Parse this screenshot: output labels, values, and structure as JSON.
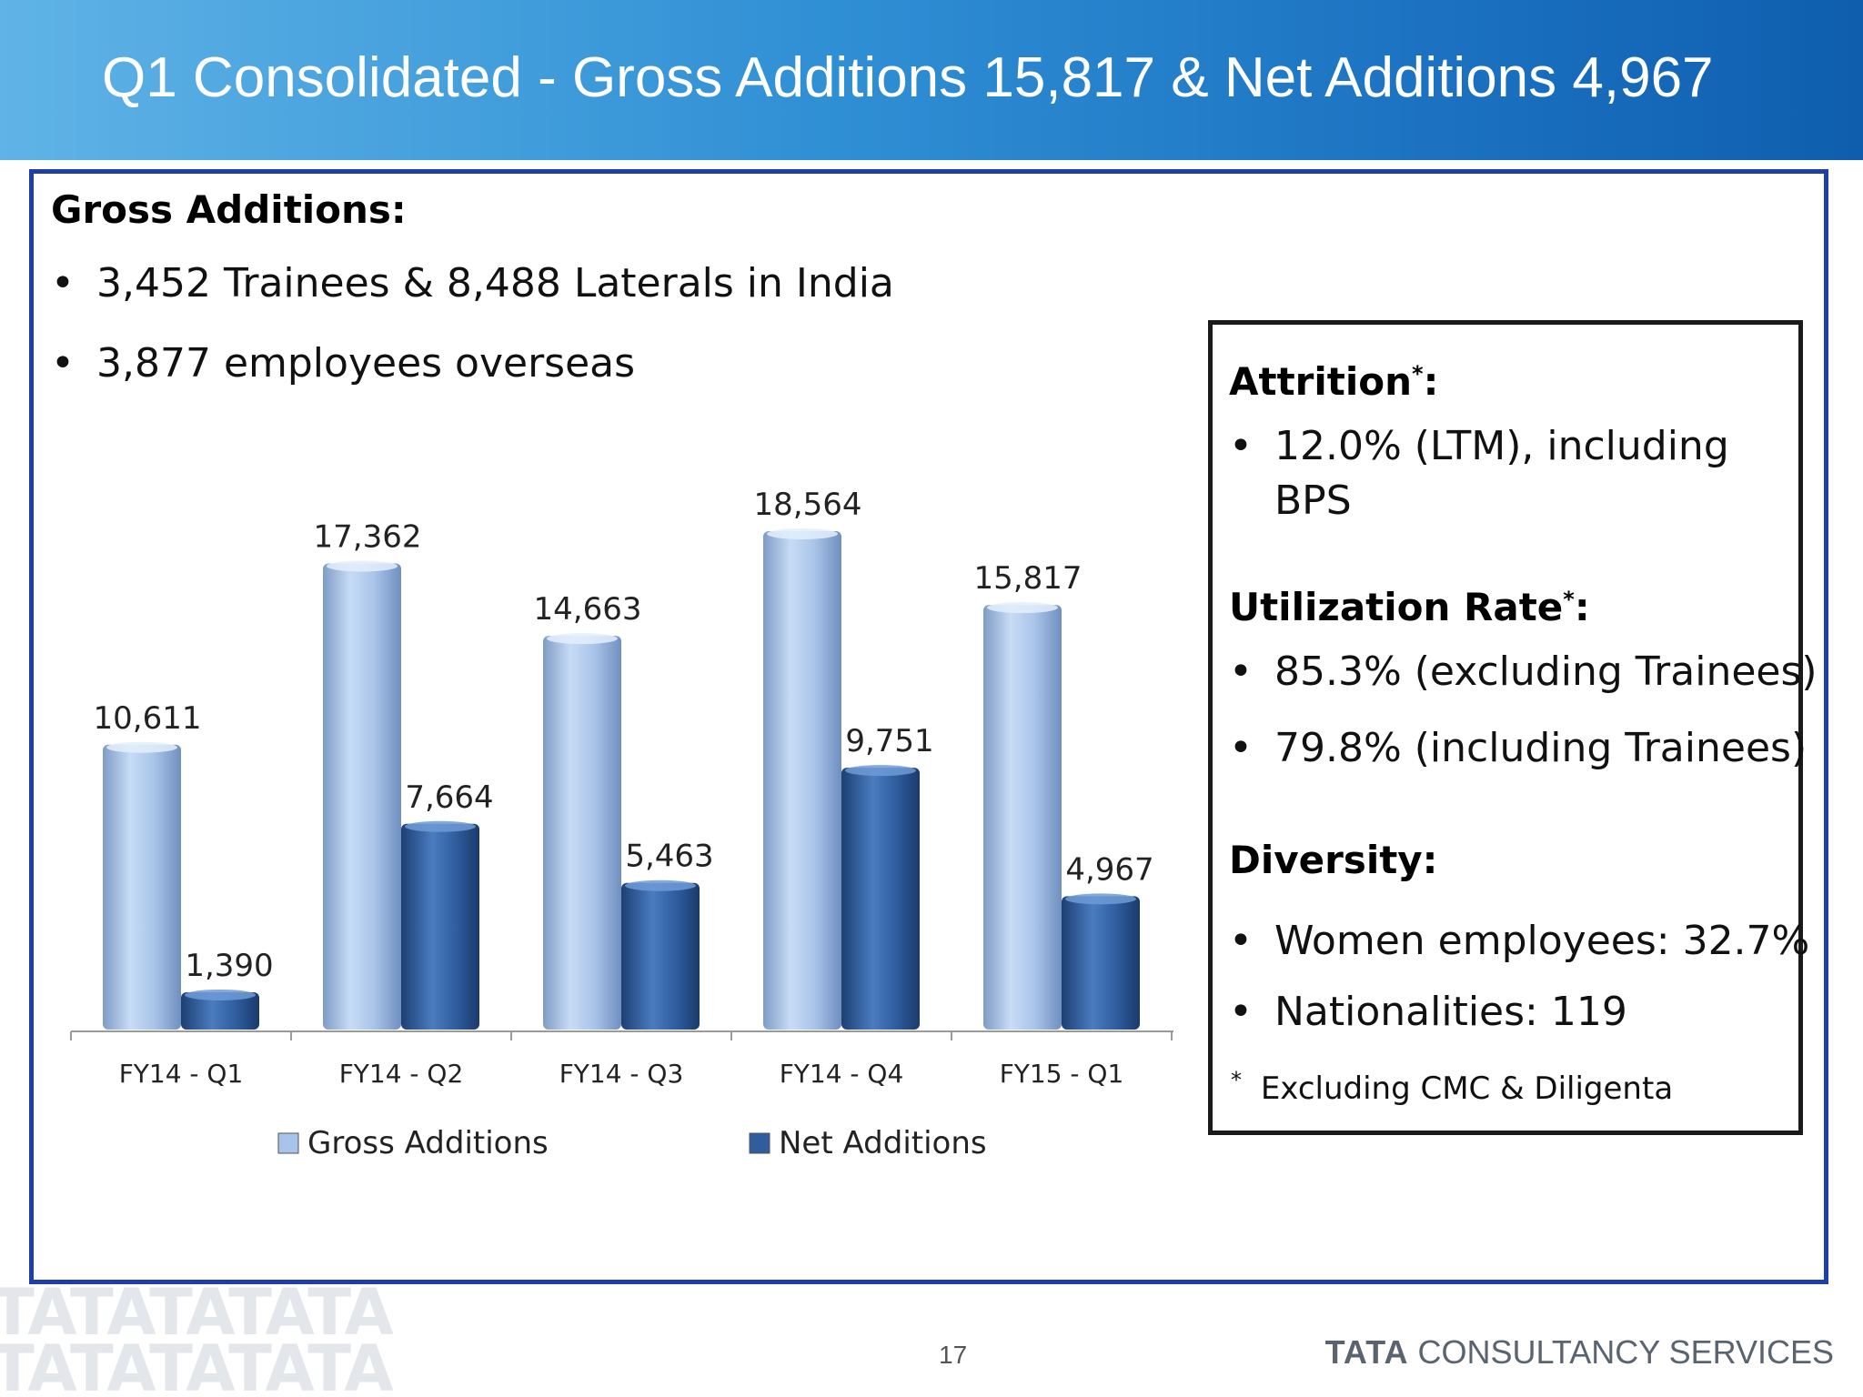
{
  "header": {
    "title": "Q1 Consolidated - Gross Additions 15,817 & Net Additions 4,967"
  },
  "gross_section": {
    "heading": "Gross Additions:",
    "bullets": [
      "3,452 Trainees & 8,488 Laterals in India",
      "3,877 employees  overseas"
    ]
  },
  "side_box": {
    "attrition_heading": "Attrition",
    "attrition_bullet_line1": "12.0% (LTM), including",
    "attrition_bullet_line2": "BPS",
    "utilization_heading": "Utilization Rate",
    "utilization_bullets": [
      "85.3% (excluding Trainees)",
      "79.8% (including Trainees)"
    ],
    "diversity_heading": "Diversity:",
    "diversity_bullets": [
      "Women employees: 32.7%",
      "Nationalities: 119"
    ],
    "asterisk": "*",
    "footnote": "Excluding CMC & Diligenta",
    "colon": ":",
    "bullet_char": "•"
  },
  "chart_data": {
    "type": "bar",
    "categories": [
      "FY14 - Q1",
      "FY14 - Q2",
      "FY14 - Q3",
      "FY14 - Q4",
      "FY15 - Q1"
    ],
    "series": [
      {
        "name": "Gross Additions",
        "values": [
          10611,
          17362,
          14663,
          18564,
          15817
        ],
        "color": "#a9c4ea"
      },
      {
        "name": "Net Additions",
        "values": [
          1390,
          7664,
          5463,
          9751,
          4967
        ],
        "color": "#2f5d9e"
      }
    ],
    "data_labels": {
      "gross": [
        "10,611",
        "17,362",
        "14,663",
        "18,564",
        "15,817"
      ],
      "net": [
        "1,390",
        "7,664",
        "5,463",
        "9,751",
        "4,967"
      ]
    },
    "legend_position": "bottom",
    "grid": false
  },
  "footer": {
    "page_number": "17",
    "brand_bold": "TATA",
    "brand_rest": "CONSULTANCY SERVICES",
    "watermark_line": "TATATATATA"
  }
}
